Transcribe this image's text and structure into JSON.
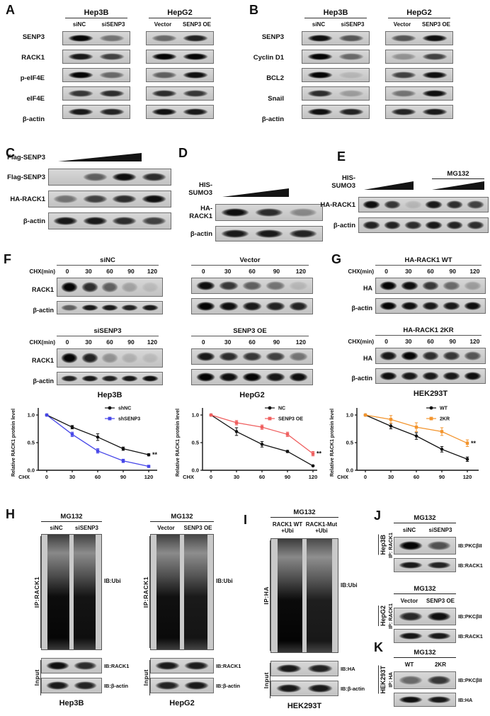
{
  "colors": {
    "black": "#111111",
    "blue": "#4646e8",
    "red": "#ef5f5f",
    "orange": "#f3952e"
  },
  "panels": {
    "A": {
      "label": "A",
      "row_labels": [
        "SENP3",
        "RACK1",
        "p-eIF4E",
        "eIF4E",
        "β-actin"
      ],
      "groups": [
        {
          "title": "Hep3B",
          "lanes": [
            "siNC",
            "siSENP3"
          ],
          "rows": [
            [
              1.0,
              0.45
            ],
            [
              0.9,
              0.7
            ],
            [
              1.0,
              0.5
            ],
            [
              0.75,
              0.8
            ],
            [
              0.9,
              0.85
            ]
          ]
        },
        {
          "title": "HepG2",
          "lanes": [
            "Vector",
            "SENP3 OE"
          ],
          "rows": [
            [
              0.5,
              0.85
            ],
            [
              1.0,
              1.0
            ],
            [
              0.55,
              0.95
            ],
            [
              0.8,
              0.75
            ],
            [
              0.95,
              0.9
            ]
          ]
        }
      ]
    },
    "B": {
      "label": "B",
      "row_labels": [
        "SENP3",
        "Cyclin D1",
        "BCL2",
        "Snail",
        "β-actin"
      ],
      "groups": [
        {
          "title": "Hep3B",
          "lanes": [
            "siNC",
            "siSENP3"
          ],
          "rows": [
            [
              0.95,
              0.6
            ],
            [
              1.0,
              0.5
            ],
            [
              1.0,
              0.12
            ],
            [
              0.8,
              0.25
            ],
            [
              0.95,
              0.85
            ]
          ]
        },
        {
          "title": "HepG2",
          "lanes": [
            "Vector",
            "SENP3 OE"
          ],
          "rows": [
            [
              0.6,
              0.95
            ],
            [
              0.3,
              0.7
            ],
            [
              0.7,
              0.95
            ],
            [
              0.45,
              0.95
            ],
            [
              0.85,
              0.9
            ]
          ]
        }
      ]
    },
    "C": {
      "label": "C",
      "header_label": "Flag-SENP3",
      "rows": [
        {
          "label": "Flag-SENP3",
          "lanes": [
            0,
            0.55,
            0.95,
            0.8
          ]
        },
        {
          "label": "HA-RACK1",
          "lanes": [
            0.45,
            0.7,
            0.8,
            0.95
          ]
        },
        {
          "label": "β-actin",
          "lanes": [
            0.9,
            0.9,
            0.8,
            0.7
          ]
        }
      ]
    },
    "D": {
      "label": "D",
      "header_label": "HIS-SUMO3",
      "rows": [
        {
          "label": "HA-RACK1",
          "lanes": [
            0.95,
            0.8,
            0.35
          ]
        },
        {
          "label": "β-actin",
          "lanes": [
            0.9,
            0.9,
            0.85
          ]
        }
      ]
    },
    "E": {
      "label": "E",
      "header_label": "HIS-SUMO3",
      "mg132_label": "MG132",
      "rows": [
        {
          "label": "HA-RACK1",
          "lanes": [
            0.95,
            0.75,
            0.12,
            0.9,
            0.8,
            0.7
          ]
        },
        {
          "label": "β-actin",
          "lanes": [
            0.85,
            0.85,
            0.8,
            0.9,
            0.85,
            0.8
          ]
        }
      ]
    },
    "F": {
      "label": "F",
      "chx_label": "CHX(min)",
      "timepoints": [
        "0",
        "30",
        "60",
        "90",
        "120"
      ],
      "col1": {
        "cell": "Hep3B",
        "row_labels": [
          "RACK1",
          "β-actin"
        ],
        "blocks": [
          {
            "title": "siNC",
            "rows": [
              [
                1.0,
                0.8,
                0.55,
                0.22,
                0.1
              ],
              [
                0.55,
                0.9,
                0.9,
                0.85,
                0.9
              ]
            ]
          },
          {
            "title": "siSENP3",
            "rows": [
              [
                1.0,
                0.85,
                0.3,
                0.15,
                0.1
              ],
              [
                0.85,
                0.9,
                0.85,
                0.9,
                0.95
              ]
            ]
          }
        ]
      },
      "col2": {
        "cell": "HepG2",
        "row_labels": null,
        "blocks": [
          {
            "title": "Vector",
            "rows": [
              [
                0.95,
                0.75,
                0.55,
                0.45,
                0.12
              ],
              [
                1.0,
                0.95,
                0.9,
                0.85,
                0.85
              ]
            ]
          },
          {
            "title": "SENP3 OE",
            "rows": [
              [
                0.9,
                0.8,
                0.75,
                0.7,
                0.45
              ],
              [
                1.0,
                0.95,
                1.0,
                0.9,
                0.95
              ]
            ]
          }
        ]
      }
    },
    "G": {
      "label": "G",
      "chx_label": "CHX(min)",
      "timepoints": [
        "0",
        "30",
        "60",
        "90",
        "120"
      ],
      "cell": "HEK293T",
      "row_labels": [
        "HA",
        "β-actin"
      ],
      "blocks": [
        {
          "title": "HA-RACK1 WT",
          "rows": [
            [
              1.0,
              0.95,
              0.75,
              0.5,
              0.25
            ],
            [
              1.0,
              0.95,
              0.9,
              0.9,
              0.95
            ]
          ]
        },
        {
          "title": "HA-RACK1 2KR",
          "rows": [
            [
              0.9,
              1.0,
              0.8,
              0.75,
              0.6
            ],
            [
              0.95,
              0.9,
              0.9,
              0.9,
              0.95
            ]
          ]
        }
      ]
    },
    "H": {
      "label": "H",
      "blocks": [
        {
          "mg132": "MG132",
          "lanes": [
            "siNC",
            "siSENP3"
          ],
          "ip_label": "IP:RACK1",
          "ib_label": "IB:Ubi",
          "input_label": "Input",
          "smear": [
            0.97,
            0.93
          ],
          "input_rows": [
            {
              "label": "IB:RACK1",
              "lanes": [
                0.95,
                0.8
              ]
            },
            {
              "label": "IB:β-actin",
              "lanes": [
                0.9,
                0.85
              ]
            }
          ],
          "cell": "Hep3B"
        },
        {
          "mg132": "MG132",
          "lanes": [
            "Vector",
            "SENP3 OE"
          ],
          "ip_label": "IP:RACK1",
          "ib_label": "IB:Ubi",
          "input_label": "Input",
          "smear": [
            0.95,
            0.9
          ],
          "input_rows": [
            {
              "label": "IB:RACK1",
              "lanes": [
                0.9,
                0.88
              ]
            },
            {
              "label": "IB:β-actin",
              "lanes": [
                0.85,
                0.9
              ]
            }
          ],
          "cell": "HepG2"
        }
      ]
    },
    "I": {
      "label": "I",
      "mg132": "MG132",
      "lanes": [
        "RACK1 WT\n+Ubi",
        "RACK1-Mut\n+Ubi"
      ],
      "ip_label": "IP:HA",
      "ib_label": "IB:Ubi",
      "input_label": "Input",
      "smear": [
        0.98,
        0.88
      ],
      "input_rows": [
        {
          "label": "IB:HA",
          "lanes": [
            0.9,
            0.85
          ]
        },
        {
          "label": "IB:β-actin",
          "lanes": [
            0.9,
            0.9
          ]
        }
      ],
      "cell": "HEK293T"
    },
    "J": {
      "label": "J",
      "blocks": [
        {
          "cell": "Hep3B",
          "ip_label": "IP: RACK1",
          "mg132": "MG132",
          "lanes": [
            "siNC",
            "siSENP3"
          ],
          "rows": [
            {
              "label": "IB:PKCβII",
              "lanes": [
                1.0,
                0.62
              ]
            },
            {
              "label": "IB:RACK1",
              "lanes": [
                0.9,
                0.85
              ]
            }
          ]
        },
        {
          "cell": "HepG2",
          "ip_label": "IP: RACK1",
          "mg132": "MG132",
          "lanes": [
            "Vector",
            "SENP3 OE"
          ],
          "rows": [
            {
              "label": "IB:PKCβII",
              "lanes": [
                0.82,
                0.95
              ]
            },
            {
              "label": "IB:RACK1",
              "lanes": [
                0.92,
                0.9
              ]
            }
          ]
        }
      ]
    },
    "K": {
      "label": "K",
      "cell": "HEK293T",
      "ip_label": "IP: HA",
      "mg132": "MG132",
      "lanes": [
        "WT",
        "2KR"
      ],
      "rows": [
        {
          "label": "IB:PKCβII",
          "lanes": [
            0.5,
            0.75
          ]
        },
        {
          "label": "IB:HA",
          "lanes": [
            0.95,
            0.9
          ]
        }
      ]
    }
  },
  "chart_data": [
    {
      "type": "line",
      "x": [
        0,
        30,
        60,
        90,
        120
      ],
      "xlabel": "CHX",
      "ylabel": "Relative RACK1 protein level",
      "yticks": [
        0.0,
        0.5,
        1.0
      ],
      "ylim": [
        0,
        1.1
      ],
      "legend_position": "upper right",
      "grid": false,
      "series": [
        {
          "name": "shNC",
          "color": "#111111",
          "marker": "circle",
          "values": [
            1.0,
            0.78,
            0.6,
            0.39,
            0.28
          ],
          "err": [
            0,
            0.03,
            0.06,
            0.03,
            0.02
          ]
        },
        {
          "name": "shSENP3",
          "color": "#4646e8",
          "marker": "square",
          "values": [
            1.0,
            0.65,
            0.35,
            0.17,
            0.07
          ],
          "err": [
            0,
            0.04,
            0.04,
            0.03,
            0.01
          ]
        }
      ],
      "annotation": {
        "text": "**",
        "series": 0
      }
    },
    {
      "type": "line",
      "x": [
        0,
        30,
        60,
        90,
        120
      ],
      "xlabel": "CHX",
      "ylabel": "Relative RACK1 protein level",
      "yticks": [
        0.0,
        0.5,
        1.0
      ],
      "ylim": [
        0,
        1.1
      ],
      "legend_position": "upper right",
      "grid": false,
      "series": [
        {
          "name": "NC",
          "color": "#111111",
          "marker": "circle",
          "values": [
            1.0,
            0.7,
            0.47,
            0.34,
            0.08
          ],
          "err": [
            0,
            0.07,
            0.05,
            0.02,
            0.01
          ]
        },
        {
          "name": "SENP3 OE",
          "color": "#ef5f5f",
          "marker": "square",
          "values": [
            1.0,
            0.86,
            0.78,
            0.65,
            0.3
          ],
          "err": [
            0,
            0.04,
            0.04,
            0.04,
            0.04
          ]
        }
      ],
      "annotation": {
        "text": "**",
        "series": 1
      }
    },
    {
      "type": "line",
      "x": [
        0,
        30,
        60,
        90,
        120
      ],
      "xlabel": "CHX",
      "ylabel": "Relative RACK1 protein level",
      "yticks": [
        0.0,
        0.5,
        1.0
      ],
      "ylim": [
        0,
        1.1
      ],
      "legend_position": "upper right",
      "grid": false,
      "series": [
        {
          "name": "WT",
          "color": "#111111",
          "marker": "circle",
          "values": [
            1.0,
            0.8,
            0.62,
            0.38,
            0.2
          ],
          "err": [
            0,
            0.05,
            0.06,
            0.05,
            0.04
          ]
        },
        {
          "name": "2KR",
          "color": "#f3952e",
          "marker": "square",
          "values": [
            1.0,
            0.92,
            0.78,
            0.7,
            0.49
          ],
          "err": [
            0,
            0.07,
            0.08,
            0.07,
            0.06
          ]
        }
      ],
      "annotation": {
        "text": "**",
        "series": 1
      }
    }
  ]
}
